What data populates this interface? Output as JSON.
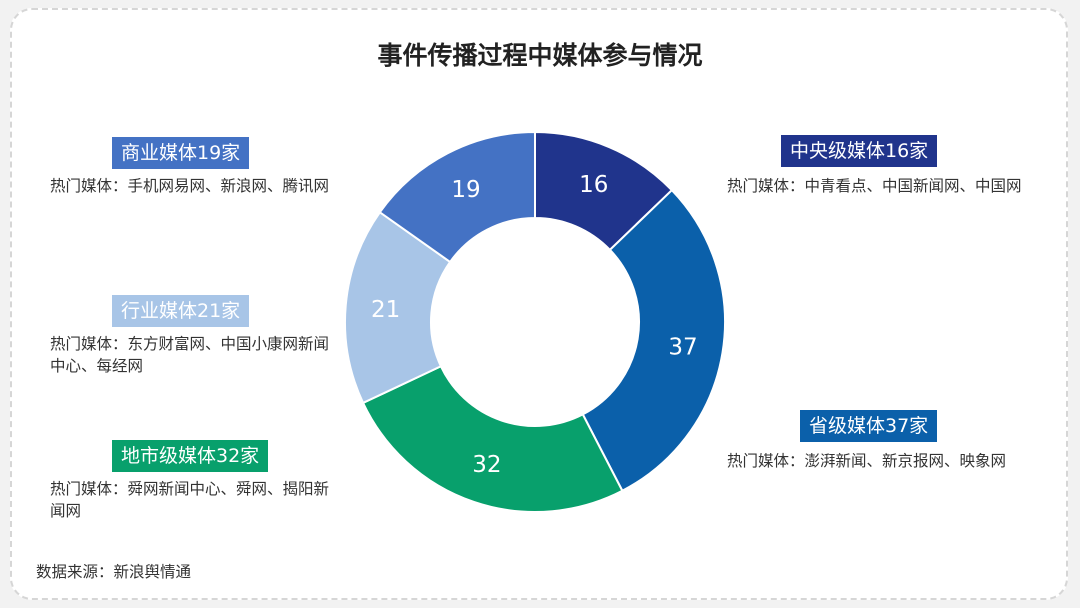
{
  "chart_data": {
    "type": "pie",
    "title": "事件传播过程中媒体参与情况",
    "donut": true,
    "start": "top",
    "direction": "clockwise",
    "categories": [
      "中央级媒体",
      "省级媒体",
      "地市级媒体",
      "行业媒体",
      "商业媒体"
    ],
    "values": [
      16,
      37,
      32,
      21,
      19
    ],
    "colors": [
      "#20348c",
      "#0b60aa",
      "#08a06c",
      "#a8c5e7",
      "#4472c4"
    ],
    "data_labels": [
      "16",
      "37",
      "32",
      "21",
      "19"
    ]
  },
  "callouts": [
    {
      "badge": "中央级媒体16家",
      "desc": "热门媒体：中青看点、中国新闻网、中国网"
    },
    {
      "badge": "省级媒体37家",
      "desc": "热门媒体：澎湃新闻、新京报网、映象网"
    },
    {
      "badge": "地市级媒体32家",
      "desc": "热门媒体：舜网新闻中心、舜网、揭阳新闻网"
    },
    {
      "badge": "行业媒体21家",
      "desc": "热门媒体：东方财富网、中国小康网新闻中心、每经网"
    },
    {
      "badge": "商业媒体19家",
      "desc": "热门媒体：手机网易网、新浪网、腾讯网"
    }
  ],
  "source": "数据来源：新浪舆情通"
}
